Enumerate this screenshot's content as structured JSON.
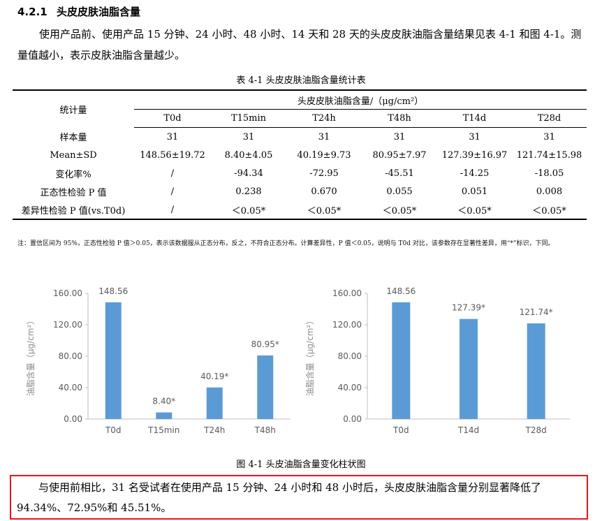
{
  "heading": {
    "number": "4.2.1",
    "title": "头皮皮肤油脂含量"
  },
  "intro": "使用产品前、使用产品 15 分钟、24 小时、48 小时、14 天和 28 天的头皮皮肤油脂含量结果见表 4-1 和图 4-1。测量值越小，表示皮肤油脂含量越少。",
  "table": {
    "caption": "表 4-1 头皮皮肤油脂含量统计表",
    "stat_header": "统计量",
    "group_header": "头皮皮肤油脂含量/（μg/cm²）",
    "columns": [
      "T0d",
      "T15min",
      "T24h",
      "T48h",
      "T14d",
      "T28d"
    ],
    "rows": [
      {
        "label": "样本量",
        "cells": [
          "31",
          "31",
          "31",
          "31",
          "31",
          "31"
        ]
      },
      {
        "label": "Mean±SD",
        "cells": [
          "148.56±19.72",
          "8.40±4.05",
          "40.19±9.73",
          "80.95±7.97",
          "127.39±16.97",
          "121.74±15.98"
        ]
      },
      {
        "label": "变化率%",
        "cells": [
          "/",
          "-94.34",
          "-72.95",
          "-45.51",
          "-14.25",
          "-18.05"
        ]
      },
      {
        "label": "正态性检验 P 值",
        "cells": [
          "/",
          "0.238",
          "0.670",
          "0.055",
          "0.051",
          "0.008"
        ]
      },
      {
        "label": "差异性检验 P 值(vs.T0d)",
        "cells": [
          "/",
          "＜0.05*",
          "＜0.05*",
          "＜0.05*",
          "＜0.05*",
          "＜0.05*"
        ]
      }
    ]
  },
  "note": "注：置信区间为 95%，正态性检验 P 值＞0.05，表示该数据服从正态分布，反之，不符合正态分布。计算差异性，P 值＜0.05，说明与 T0d 对比，该参数存在显著性差异，用“*”标识，下同。",
  "chart_data": [
    {
      "type": "bar",
      "categories": [
        "T0d",
        "T15min",
        "T24h",
        "T48h"
      ],
      "values": [
        148.56,
        8.4,
        40.19,
        80.95
      ],
      "data_labels": [
        "148.56",
        "8.40*",
        "40.19*",
        "80.95*"
      ],
      "ylabel": "油脂含量（μg/cm²）",
      "ylim": [
        0,
        160
      ],
      "yticks": [
        "0.00",
        "40.00",
        "80.00",
        "120.00",
        "160.00"
      ],
      "bar_color": "#5b9bd5",
      "grid": false
    },
    {
      "type": "bar",
      "categories": [
        "T0d",
        "T14d",
        "T28d"
      ],
      "values": [
        148.56,
        127.39,
        121.74
      ],
      "data_labels": [
        "148.56",
        "127.39*",
        "121.74*"
      ],
      "ylabel": "油脂含量（μg/cm²）",
      "ylim": [
        0,
        160
      ],
      "yticks": [
        "0.00",
        "40.00",
        "80.00",
        "120.00",
        "160.00"
      ],
      "bar_color": "#5b9bd5",
      "grid": false
    }
  ],
  "figure_caption": "图 4-1 头皮油脂含量变化柱状图",
  "conclusion": "与使用前相比，31 名受试者在使用产品 15 分钟、24 小时和 48 小时后，头皮皮肤油脂含量分别显著降低了 94.34%、72.95%和 45.51%。",
  "colors": {
    "highlight_border": "#e8141c",
    "bar": "#5b9bd5",
    "axis_text": "#595959"
  }
}
